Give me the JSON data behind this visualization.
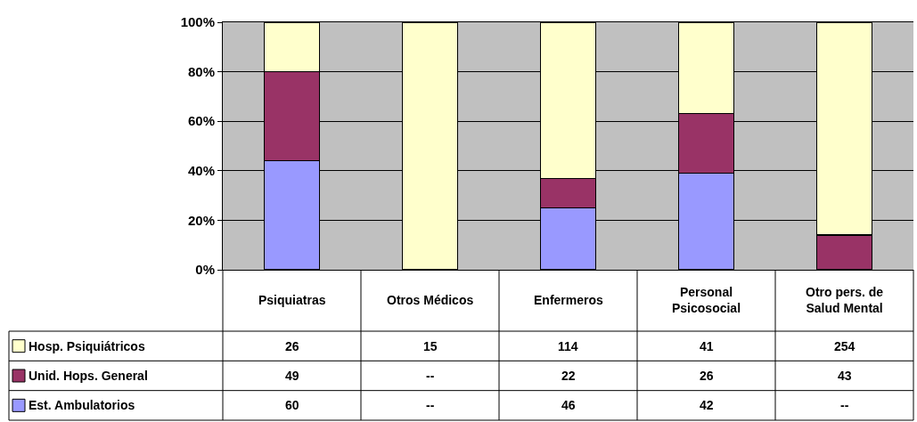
{
  "chart_data": {
    "type": "bar",
    "stacked": true,
    "categories": [
      "Psiquiatras",
      "Otros Médicos",
      "Enfermeros",
      "Personal Psicosocial",
      "Otro pers. de Salud Mental"
    ],
    "series": [
      {
        "name": "Est. Ambulatorios",
        "color": "#9999ff",
        "values": [
          44,
          null,
          25,
          39,
          null
        ]
      },
      {
        "name": "Unid. Hops. General",
        "color": "#993366",
        "values": [
          36,
          null,
          12,
          24,
          14
        ]
      },
      {
        "name": "Hosp. Psiquiátricos",
        "color": "#ffffcc",
        "values": [
          20,
          100,
          63,
          37,
          86
        ]
      }
    ],
    "ylim": [
      0,
      100
    ],
    "yticks": [
      {
        "value": 0,
        "label": "0%"
      },
      {
        "value": 20,
        "label": "20%"
      },
      {
        "value": 40,
        "label": "40%"
      },
      {
        "value": 60,
        "label": "60%"
      },
      {
        "value": 80,
        "label": "80%"
      },
      {
        "value": 100,
        "label": "100%"
      }
    ],
    "grid": "y",
    "legend": "bottom",
    "annotations": [
      "26",
      "15",
      "114",
      "41",
      "254",
      "49",
      "--",
      "22",
      "26",
      "43",
      "60",
      "--",
      "46",
      "42",
      "--"
    ]
  }
}
